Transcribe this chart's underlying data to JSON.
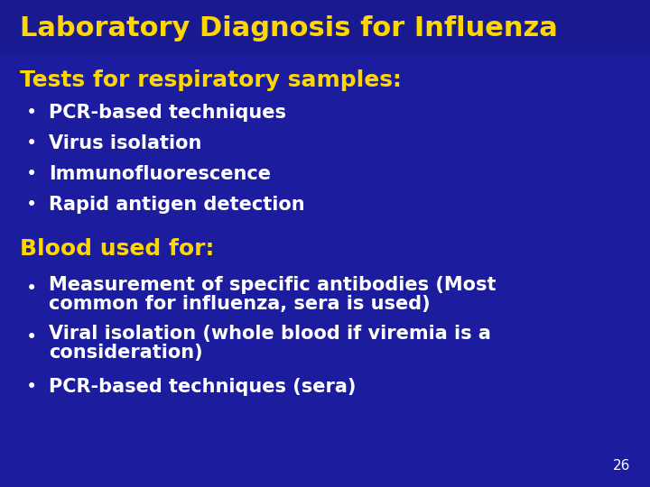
{
  "title": "Laboratory Diagnosis for Influenza",
  "title_color": "#FFD700",
  "background_color": "#1C1C9E",
  "title_bg_color": "#1A1A90",
  "section1_header": "Tests for respiratory samples:",
  "section1_header_color": "#FFD700",
  "section1_bullets": [
    "PCR-based techniques",
    "Virus isolation",
    "Immunofluorescence",
    "Rapid antigen detection"
  ],
  "section1_bullet_color": "#FFFFFF",
  "section2_header": "Blood used for:",
  "section2_header_color": "#FFD700",
  "section2_bullets_line1": [
    "Measurement of specific antibodies (Most",
    "common for influenza, sera is used)"
  ],
  "section2_bullets_line2": [
    "Viral isolation (whole blood if viremia is a",
    "consideration)"
  ],
  "section2_bullets_line3": [
    "PCR-based techniques (sera)"
  ],
  "section2_bullet_color": "#FFFFFF",
  "page_number": "26",
  "page_number_color": "#FFFFFF",
  "title_fontsize": 22,
  "section_header_fontsize": 18,
  "bullet_fontsize": 15,
  "page_number_fontsize": 11
}
